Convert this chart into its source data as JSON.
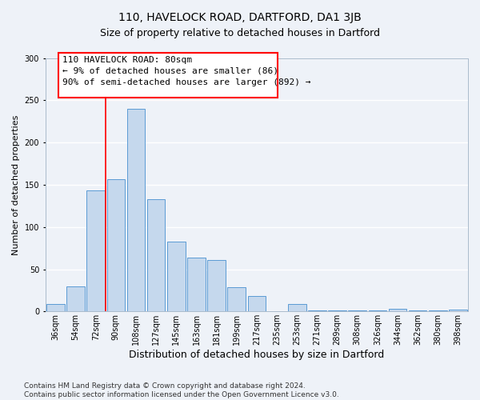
{
  "title": "110, HAVELOCK ROAD, DARTFORD, DA1 3JB",
  "subtitle": "Size of property relative to detached houses in Dartford",
  "xlabel": "Distribution of detached houses by size in Dartford",
  "ylabel": "Number of detached properties",
  "bar_labels": [
    "36sqm",
    "54sqm",
    "72sqm",
    "90sqm",
    "108sqm",
    "127sqm",
    "145sqm",
    "163sqm",
    "181sqm",
    "199sqm",
    "217sqm",
    "235sqm",
    "253sqm",
    "271sqm",
    "289sqm",
    "308sqm",
    "326sqm",
    "344sqm",
    "362sqm",
    "380sqm",
    "398sqm"
  ],
  "bar_values": [
    9,
    30,
    143,
    157,
    240,
    133,
    83,
    64,
    61,
    29,
    18,
    0,
    9,
    1,
    1,
    1,
    1,
    3,
    1,
    1,
    2
  ],
  "bar_color": "#c5d8ed",
  "bar_edge_color": "#5b9bd5",
  "vline_color": "red",
  "annotation_line1": "110 HAVELOCK ROAD: 80sqm",
  "annotation_line2": "← 9% of detached houses are smaller (86)",
  "annotation_line3": "90% of semi-detached houses are larger (892) →",
  "annotation_box_edge_color": "red",
  "annotation_box_face_color": "white",
  "ylim": [
    0,
    300
  ],
  "yticks": [
    0,
    50,
    100,
    150,
    200,
    250,
    300
  ],
  "footnote": "Contains HM Land Registry data © Crown copyright and database right 2024.\nContains public sector information licensed under the Open Government Licence v3.0.",
  "bg_color": "#eef2f8",
  "grid_color": "white",
  "title_fontsize": 10,
  "xlabel_fontsize": 9,
  "ylabel_fontsize": 8,
  "tick_fontsize": 7,
  "annotation_fontsize": 8,
  "footnote_fontsize": 6.5
}
